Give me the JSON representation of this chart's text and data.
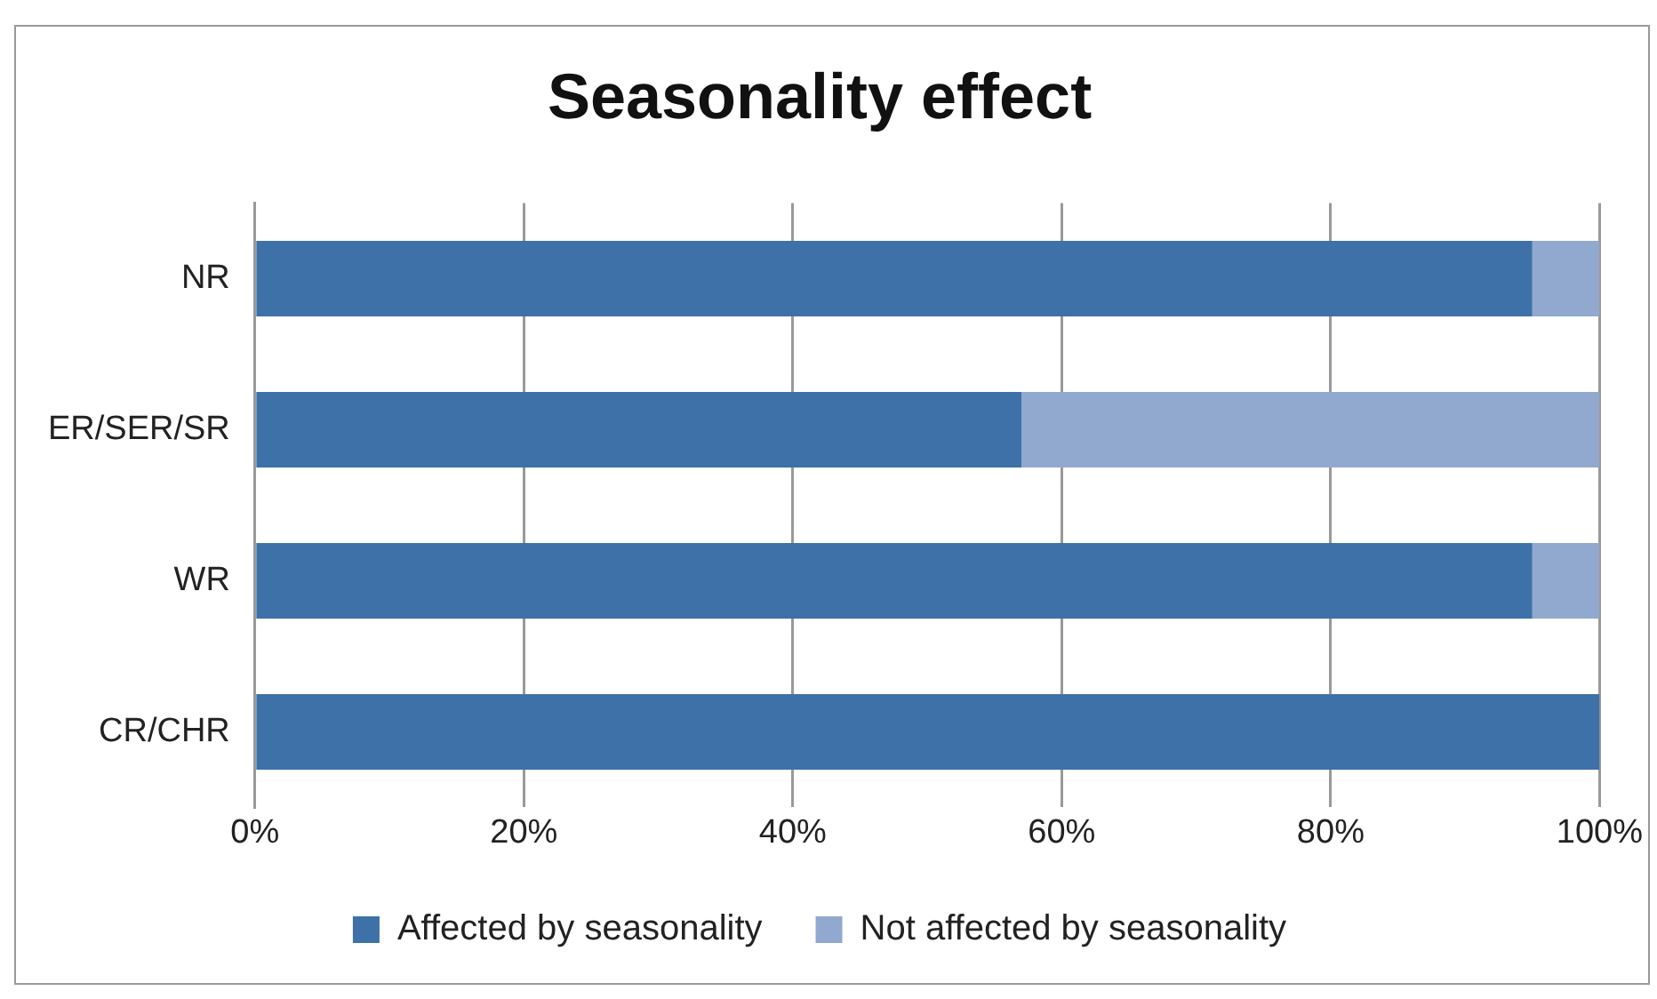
{
  "chart_data": {
    "type": "bar",
    "orientation": "horizontal",
    "stacked": true,
    "title": "Seasonality effect",
    "categories": [
      "NR",
      "ER/SER/SR",
      "WR",
      "CR/CHR"
    ],
    "series": [
      {
        "name": "Affected by seasonality",
        "color": "#3d71a7",
        "values": [
          95,
          57,
          95,
          100
        ]
      },
      {
        "name": "Not affected by seasonality",
        "color": "#91a9cf",
        "values": [
          5,
          43,
          5,
          0
        ]
      }
    ],
    "xlim": [
      0,
      100
    ],
    "xticks": [
      {
        "value": 0,
        "label": "0%"
      },
      {
        "value": 20,
        "label": "20%"
      },
      {
        "value": 40,
        "label": "40%"
      },
      {
        "value": 60,
        "label": "60%"
      },
      {
        "value": 80,
        "label": "80%"
      },
      {
        "value": 100,
        "label": "100%"
      }
    ],
    "grid": "x",
    "legend": "bottom"
  }
}
